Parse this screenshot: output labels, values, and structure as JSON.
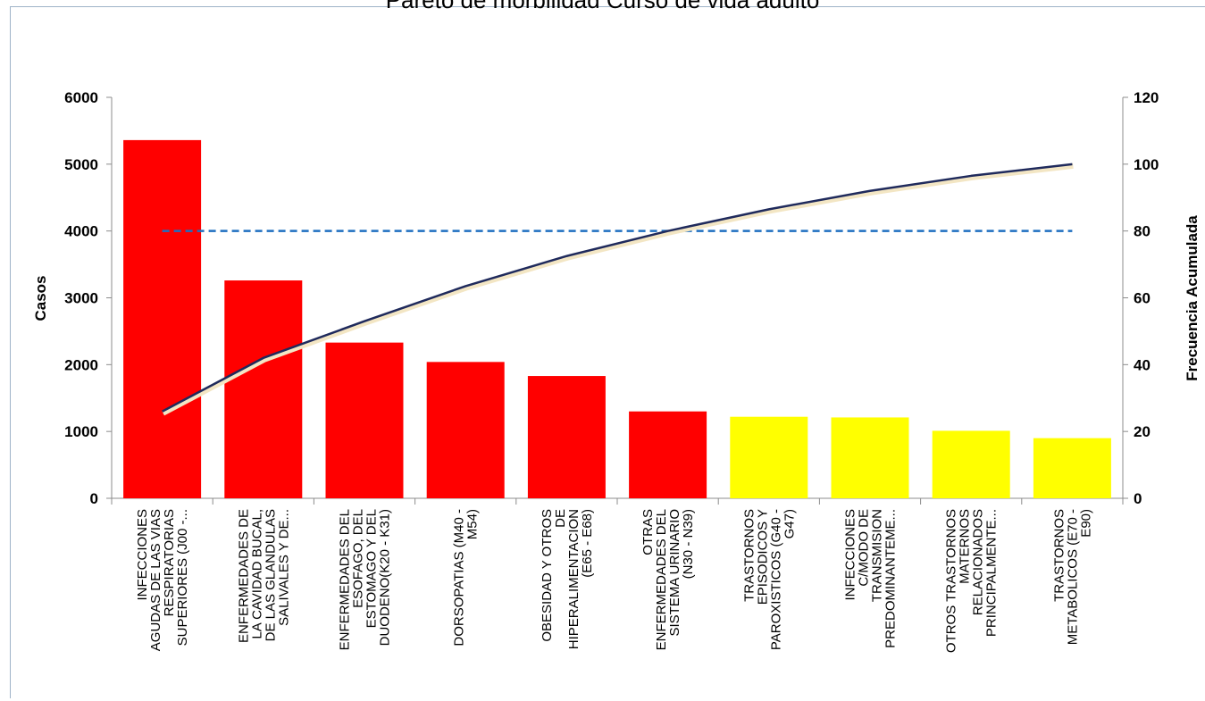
{
  "chart_data": {
    "type": "bar",
    "title": "Pareto de morbilidad Curso de vida adulto",
    "ylabel": "Casos",
    "y2label": "Frecuencia Acumulada",
    "ylim": [
      0,
      6000
    ],
    "y2lim": [
      0,
      120
    ],
    "yticks": [
      "0",
      "1000",
      "2000",
      "3000",
      "4000",
      "5000",
      "6000"
    ],
    "y2ticks": [
      "0",
      "20",
      "40",
      "60",
      "80",
      "100",
      "120"
    ],
    "grid": false,
    "categories": [
      [
        "INFECCIONES",
        "AGUDAS DE LAS VIAS",
        "RESPIRATORIAS",
        "SUPERIORES (J00 -..."
      ],
      [
        "ENFERMEDADES DE",
        "LA CAVIDAD BUCAL,",
        "DE LAS GLANDULAS",
        "SALIVALES Y DE..."
      ],
      [
        "ENFERMEDADES DEL",
        "ESOFAGO, DEL",
        "ESTOMAGO Y DEL",
        "DUODENO(K20 - K31)"
      ],
      [
        "DORSOPATIAS (M40 -",
        "M54)"
      ],
      [
        "OBESIDAD Y OTROS",
        "DE",
        "HIPERALIMENTACION",
        "(E65 - E68)"
      ],
      [
        "OTRAS",
        "ENFERMEDADES DEL",
        "SISTEMA URINARIO",
        "(N30 - N39)"
      ],
      [
        "TRASTORNOS",
        "EPISODICOS Y",
        "PAROXISTICOS (G40 -",
        "G47)"
      ],
      [
        "INFECCIONES",
        "C/MODO DE",
        "TRANSMISION",
        "PREDOMINANTEME..."
      ],
      [
        "OTROS TRASTORNOS",
        "MATERNOS",
        "RELACIONADOS",
        "PRINCIPALMENTE..."
      ],
      [
        "TRASTORNOS",
        "METABOLICOS (E70 -",
        "E90)"
      ]
    ],
    "series": [
      {
        "name": "Casos",
        "type": "bar",
        "values": [
          5360,
          3260,
          2330,
          2040,
          1830,
          1300,
          1220,
          1210,
          1010,
          900
        ],
        "colors": [
          "#ff0000",
          "#ff0000",
          "#ff0000",
          "#ff0000",
          "#ff0000",
          "#ff0000",
          "#ffff00",
          "#ffff00",
          "#ffff00",
          "#ffff00"
        ]
      },
      {
        "name": "Frecuencia Acumulada",
        "type": "line",
        "axis": "right",
        "color": "#1f2a5c",
        "values": [
          26,
          42,
          53,
          63.5,
          72.5,
          80,
          86.5,
          92,
          96.5,
          100
        ]
      },
      {
        "name": "80%",
        "type": "line",
        "axis": "right",
        "dashed": true,
        "color": "#1f6fc0",
        "values": [
          80,
          80,
          80,
          80,
          80,
          80,
          80,
          80,
          80,
          80
        ]
      }
    ]
  }
}
